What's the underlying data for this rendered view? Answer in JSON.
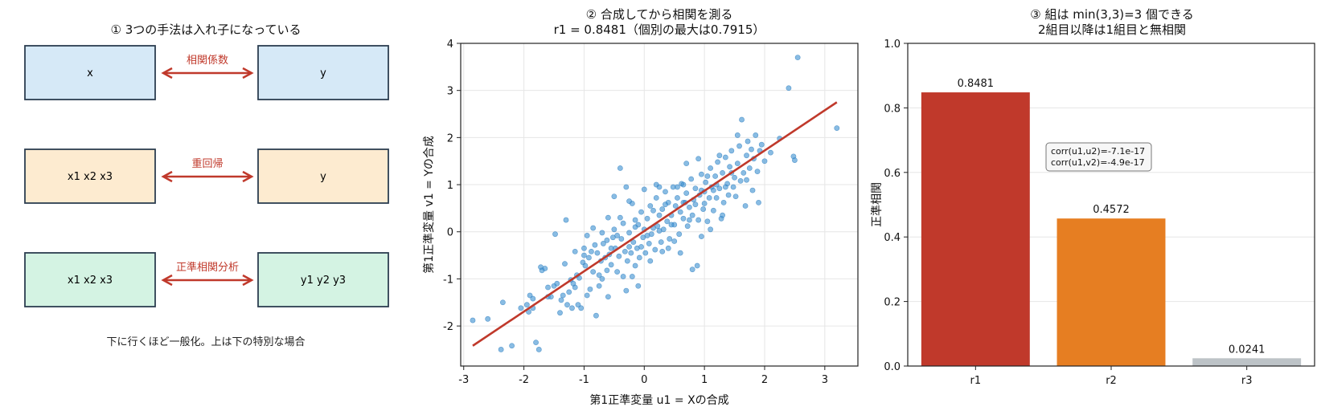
{
  "colors": {
    "box_blue": "#d6e9f7",
    "box_orange": "#fdebd0",
    "box_green": "#d4f3e3",
    "box_border": "#2c3e50",
    "arrow_red": "#c0392b",
    "scatter_point": "#3b8fd0",
    "fit_line": "#c0392b",
    "bar_r1": "#c0392b",
    "bar_r2": "#e67e22",
    "bar_r3": "#bdc3c7",
    "grid": "#e6e6e6"
  },
  "panel1": {
    "title": "① 3つの手法は入れ子になっている",
    "rows": [
      {
        "left": "x",
        "right": "y",
        "relation": "相関係数",
        "color_key": "box_blue"
      },
      {
        "left": "x1 x2 x3",
        "right": "y",
        "relation": "重回帰",
        "color_key": "box_orange"
      },
      {
        "left": "x1 x2 x3",
        "right": "y1 y2 y3",
        "relation": "正準相関分析",
        "color_key": "box_green"
      }
    ],
    "caption": "下に行くほど一般化。上は下の特別な場合"
  },
  "chart_data": [
    {
      "type": "scatter",
      "title": "② 合成してから相関を測る",
      "subtitle": "r1 = 0.8481（個別の最大は0.7915）",
      "xlabel": "第1正準変量 u1 = Xの合成",
      "ylabel": "第1正準変量 v1 = Yの合成",
      "xlim": [
        -3.05,
        3.55
      ],
      "ylim": [
        -2.85,
        4.0
      ],
      "xticks": [
        -3,
        -2,
        -1,
        0,
        1,
        2,
        3
      ],
      "xtick_labels": [
        "-3",
        "-2",
        "-1",
        "0",
        "1",
        "2",
        "3"
      ],
      "yticks": [
        -2,
        -1,
        0,
        1,
        2,
        3,
        4
      ],
      "ytick_labels": [
        "-2",
        "-1",
        "0",
        "1",
        "2",
        "3",
        "4"
      ],
      "grid": true,
      "fit_line": {
        "x": [
          -2.85,
          3.2
        ],
        "y": [
          -2.42,
          2.75
        ]
      },
      "points": [
        [
          -2.85,
          -1.88
        ],
        [
          -2.6,
          -1.85
        ],
        [
          -2.38,
          -2.5
        ],
        [
          -2.35,
          -1.5
        ],
        [
          -2.2,
          -2.42
        ],
        [
          -1.95,
          -1.55
        ],
        [
          -1.92,
          -1.7
        ],
        [
          -1.85,
          -1.62
        ],
        [
          -1.8,
          -2.35
        ],
        [
          -1.75,
          -2.5
        ],
        [
          -1.72,
          -0.75
        ],
        [
          -1.65,
          -0.78
        ],
        [
          -1.6,
          -1.38
        ],
        [
          -1.55,
          -1.38
        ],
        [
          -1.5,
          -1.15
        ],
        [
          -1.45,
          -1.1
        ],
        [
          -1.4,
          -1.72
        ],
        [
          -1.35,
          -1.35
        ],
        [
          -1.32,
          -0.68
        ],
        [
          -1.3,
          0.25
        ],
        [
          -1.28,
          -1.55
        ],
        [
          -1.25,
          -1.28
        ],
        [
          -1.22,
          -1.02
        ],
        [
          -1.2,
          -1.62
        ],
        [
          -1.18,
          -1.1
        ],
        [
          -1.15,
          -0.42
        ],
        [
          -1.12,
          -0.92
        ],
        [
          -1.1,
          -1.55
        ],
        [
          -1.08,
          -0.98
        ],
        [
          -1.05,
          -1.62
        ],
        [
          -1.02,
          -0.65
        ],
        [
          -1.0,
          -0.35
        ],
        [
          -0.98,
          -0.72
        ],
        [
          -0.95,
          -0.08
        ],
        [
          -0.92,
          -0.55
        ],
        [
          -0.9,
          -1.22
        ],
        [
          -0.88,
          -0.42
        ],
        [
          -0.85,
          -0.85
        ],
        [
          -0.82,
          -0.28
        ],
        [
          -0.8,
          -1.78
        ],
        [
          -0.78,
          -0.45
        ],
        [
          -0.75,
          -0.92
        ],
        [
          -0.72,
          -0.62
        ],
        [
          -0.7,
          -1.0
        ],
        [
          -0.68,
          -0.25
        ],
        [
          -0.65,
          -0.55
        ],
        [
          -0.62,
          -0.18
        ],
        [
          -0.6,
          -1.38
        ],
        [
          -0.58,
          -0.48
        ],
        [
          -0.55,
          -0.7
        ],
        [
          -0.52,
          -0.12
        ],
        [
          -0.5,
          0.05
        ],
        [
          -0.48,
          -0.35
        ],
        [
          -0.45,
          -0.85
        ],
        [
          -0.42,
          -0.52
        ],
        [
          -0.4,
          0.3
        ],
        [
          -0.38,
          -0.15
        ],
        [
          -0.35,
          -0.95
        ],
        [
          -0.32,
          -0.42
        ],
        [
          -0.3,
          -1.25
        ],
        [
          -0.28,
          -0.62
        ],
        [
          -0.25,
          -0.02
        ],
        [
          -0.22,
          -0.45
        ],
        [
          -0.2,
          0.6
        ],
        [
          -0.18,
          -0.22
        ],
        [
          -0.15,
          -0.72
        ],
        [
          -0.12,
          -0.35
        ],
        [
          -0.1,
          0.15
        ],
        [
          -0.08,
          -0.55
        ],
        [
          -0.05,
          0.42
        ],
        [
          -0.02,
          -0.12
        ],
        [
          0.0,
          0.05
        ],
        [
          0.02,
          -0.45
        ],
        [
          0.05,
          0.28
        ],
        [
          0.08,
          -0.25
        ],
        [
          0.1,
          0.55
        ],
        [
          0.12,
          -0.05
        ],
        [
          0.15,
          0.08
        ],
        [
          0.18,
          -0.38
        ],
        [
          0.2,
          0.72
        ],
        [
          0.22,
          0.12
        ],
        [
          0.25,
          0.35
        ],
        [
          0.28,
          -0.22
        ],
        [
          0.3,
          0.48
        ],
        [
          0.32,
          0.05
        ],
        [
          0.35,
          0.85
        ],
        [
          0.38,
          0.22
        ],
        [
          0.4,
          0.62
        ],
        [
          0.42,
          -0.15
        ],
        [
          0.45,
          0.35
        ],
        [
          0.48,
          0.95
        ],
        [
          0.5,
          0.15
        ],
        [
          0.52,
          0.55
        ],
        [
          0.55,
          0.72
        ],
        [
          0.58,
          -0.05
        ],
        [
          0.6,
          0.42
        ],
        [
          0.62,
          1.02
        ],
        [
          0.65,
          0.28
        ],
        [
          0.68,
          0.62
        ],
        [
          0.7,
          0.82
        ],
        [
          0.72,
          0.12
        ],
        [
          0.75,
          0.52
        ],
        [
          0.78,
          1.12
        ],
        [
          0.8,
          0.35
        ],
        [
          0.82,
          0.68
        ],
        [
          0.85,
          0.92
        ],
        [
          0.88,
          -0.72
        ],
        [
          0.9,
          0.25
        ],
        [
          0.92,
          0.78
        ],
        [
          0.95,
          1.22
        ],
        [
          0.98,
          0.48
        ],
        [
          1.0,
          0.85
        ],
        [
          1.02,
          1.05
        ],
        [
          1.05,
          0.22
        ],
        [
          1.08,
          0.72
        ],
        [
          1.1,
          1.35
        ],
        [
          1.12,
          0.95
        ],
        [
          1.15,
          0.45
        ],
        [
          1.18,
          1.18
        ],
        [
          1.2,
          0.72
        ],
        [
          1.22,
          1.48
        ],
        [
          1.25,
          0.92
        ],
        [
          1.28,
          0.28
        ],
        [
          1.3,
          1.25
        ],
        [
          1.32,
          0.62
        ],
        [
          1.35,
          1.58
        ],
        [
          1.38,
          1.02
        ],
        [
          1.4,
          0.78
        ],
        [
          1.42,
          1.38
        ],
        [
          1.45,
          1.72
        ],
        [
          1.48,
          0.95
        ],
        [
          1.5,
          1.15
        ],
        [
          1.52,
          0.75
        ],
        [
          1.55,
          1.45
        ],
        [
          1.58,
          1.82
        ],
        [
          1.6,
          1.08
        ],
        [
          1.62,
          2.38
        ],
        [
          1.65,
          1.25
        ],
        [
          1.68,
          0.55
        ],
        [
          1.7,
          1.62
        ],
        [
          1.72,
          1.92
        ],
        [
          1.75,
          1.35
        ],
        [
          1.78,
          1.75
        ],
        [
          1.8,
          0.88
        ],
        [
          1.82,
          1.55
        ],
        [
          1.85,
          2.05
        ],
        [
          1.88,
          1.28
        ],
        [
          1.9,
          0.62
        ],
        [
          1.92,
          1.72
        ],
        [
          1.95,
          1.85
        ],
        [
          2.0,
          1.5
        ],
        [
          2.1,
          1.68
        ],
        [
          2.25,
          1.98
        ],
        [
          2.4,
          3.05
        ],
        [
          2.48,
          1.6
        ],
        [
          2.5,
          1.52
        ],
        [
          2.55,
          3.7
        ],
        [
          3.2,
          2.2
        ],
        [
          1.55,
          2.05
        ],
        [
          1.45,
          1.25
        ],
        [
          -1.9,
          -1.35
        ],
        [
          -1.6,
          -1.18
        ],
        [
          -1.48,
          -0.05
        ],
        [
          -1.38,
          -1.45
        ],
        [
          -1.15,
          -1.18
        ],
        [
          -0.95,
          -1.35
        ],
        [
          -0.75,
          -1.15
        ],
        [
          -0.62,
          -0.82
        ],
        [
          -0.55,
          -0.35
        ],
        [
          -0.45,
          -0.08
        ],
        [
          -0.35,
          0.18
        ],
        [
          -0.25,
          -0.32
        ],
        [
          -0.15,
          0.25
        ],
        [
          -0.05,
          -0.32
        ],
        [
          0.05,
          -0.08
        ],
        [
          0.15,
          0.45
        ],
        [
          0.25,
          0.02
        ],
        [
          0.35,
          0.58
        ],
        [
          0.45,
          0.15
        ],
        [
          0.55,
          0.95
        ],
        [
          0.65,
          0.62
        ],
        [
          0.75,
          0.25
        ],
        [
          0.85,
          0.58
        ],
        [
          0.95,
          0.88
        ],
        [
          1.05,
          1.18
        ],
        [
          1.15,
          0.88
        ],
        [
          1.25,
          1.62
        ],
        [
          1.35,
          0.95
        ],
        [
          0.4,
          -0.35
        ],
        [
          0.6,
          -0.45
        ],
        [
          0.8,
          -0.8
        ],
        [
          0.7,
          1.45
        ],
        [
          0.9,
          1.55
        ],
        [
          0.2,
          1.0
        ],
        [
          0.0,
          0.9
        ],
        [
          -0.3,
          0.95
        ],
        [
          -0.4,
          1.35
        ],
        [
          -0.5,
          0.75
        ],
        [
          -0.7,
          -0.02
        ],
        [
          -0.85,
          0.08
        ],
        [
          0.95,
          -0.1
        ],
        [
          1.1,
          0.05
        ],
        [
          1.3,
          0.35
        ],
        [
          -0.2,
          -0.95
        ],
        [
          -0.1,
          -1.15
        ],
        [
          0.1,
          -0.62
        ],
        [
          0.3,
          -0.42
        ],
        [
          -1.7,
          -0.82
        ],
        [
          -1.85,
          -1.42
        ],
        [
          -2.05,
          -1.62
        ],
        [
          -0.6,
          0.3
        ],
        [
          -0.25,
          0.65
        ],
        [
          0.5,
          -0.2
        ],
        [
          0.25,
          0.95
        ],
        [
          -0.15,
          0.1
        ],
        [
          0.65,
          1.0
        ],
        [
          1.0,
          0.6
        ],
        [
          1.2,
          1.0
        ],
        [
          1.7,
          1.1
        ],
        [
          -1.0,
          -0.5
        ]
      ]
    },
    {
      "type": "bar",
      "title": "③ 組は min(3,3)=3 個できる",
      "subtitle": "2組目以降は1組目と無相関",
      "ylabel": "正準相関",
      "categories": [
        "r1",
        "r2",
        "r3"
      ],
      "values": [
        0.8481,
        0.4572,
        0.0241
      ],
      "value_labels": [
        "0.8481",
        "0.4572",
        "0.0241"
      ],
      "ylim": [
        0,
        1.0
      ],
      "yticks": [
        0,
        0.2,
        0.4,
        0.6,
        0.8,
        1.0
      ],
      "ytick_labels": [
        "0.0",
        "0.2",
        "0.4",
        "0.6",
        "0.8",
        "1.0"
      ],
      "grid": "y",
      "annotation": [
        "corr(u1,u2)=-7.1e-17",
        "corr(u1,v2)=-4.9e-17"
      ]
    }
  ]
}
